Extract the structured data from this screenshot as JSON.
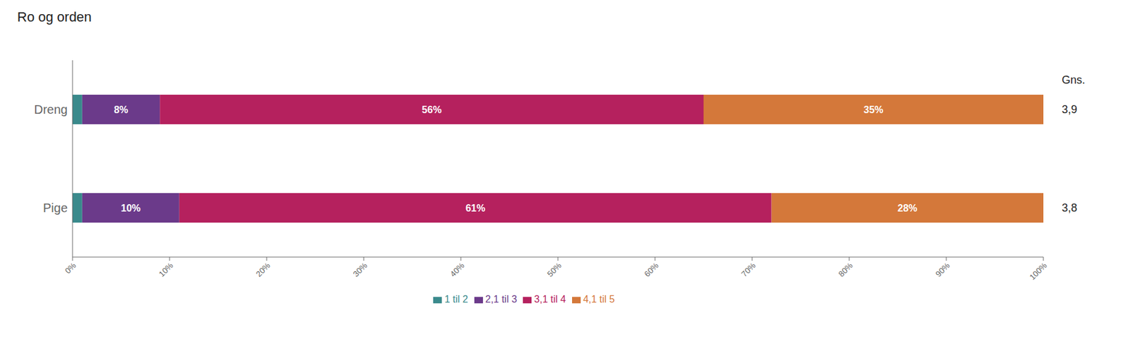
{
  "chart_data": {
    "type": "bar",
    "title": "Ro og orden",
    "orientation": "horizontal",
    "stacked": true,
    "data_labels": true,
    "grid": false,
    "legend": "bottom",
    "categories": [
      "Dreng",
      "Pige"
    ],
    "series": [
      {
        "name": "1 til 2",
        "color": "#3a8a8c",
        "values": [
          1,
          1
        ],
        "value_labels": [
          null,
          null
        ]
      },
      {
        "name": "2,1 til 3",
        "color": "#6b3a8a",
        "values": [
          8,
          10
        ],
        "value_labels": [
          "8%",
          "10%"
        ]
      },
      {
        "name": "3,1 til 4",
        "color": "#b5215e",
        "values": [
          56,
          61
        ],
        "value_labels": [
          "56%",
          "61%"
        ]
      },
      {
        "name": "4,1 til 5",
        "color": "#d4783a",
        "values": [
          35,
          28
        ],
        "value_labels": [
          "35%",
          "28%"
        ]
      }
    ],
    "xlim": [
      0,
      100
    ],
    "xticks": [
      {
        "value": 0,
        "label": "0%"
      },
      {
        "value": 10,
        "label": "10%"
      },
      {
        "value": 20,
        "label": "20%"
      },
      {
        "value": 30,
        "label": "30%"
      },
      {
        "value": 40,
        "label": "40%"
      },
      {
        "value": 50,
        "label": "50%"
      },
      {
        "value": 60,
        "label": "60%"
      },
      {
        "value": 70,
        "label": "70%"
      },
      {
        "value": 80,
        "label": "80%"
      },
      {
        "value": 90,
        "label": "90%"
      },
      {
        "value": 100,
        "label": "100%"
      }
    ],
    "annotations": {
      "header": "Gns.",
      "values": [
        {
          "value": 3.9,
          "label": "3,9"
        },
        {
          "value": 3.8,
          "label": "3,8"
        }
      ]
    }
  }
}
